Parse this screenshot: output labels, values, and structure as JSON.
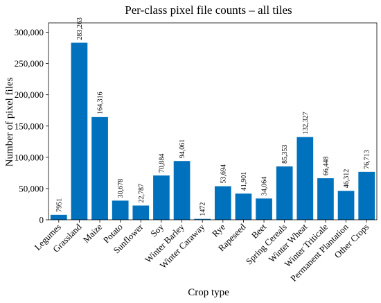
{
  "chart_data": {
    "type": "bar",
    "title": "Per-class pixel file counts – all tiles",
    "xlabel": "Crop type",
    "ylabel": "Number of pixel files",
    "ylim": [
      0,
      315000
    ],
    "yticks": [
      0,
      50000,
      100000,
      150000,
      200000,
      250000,
      300000
    ],
    "ytick_labels": [
      "0",
      "50,000",
      "100,000",
      "150,000",
      "200,000",
      "250,000",
      "300,000"
    ],
    "categories": [
      "Legumes",
      "Grassland",
      "Maize",
      "Potato",
      "Sunflower",
      "Soy",
      "Winter Barley",
      "Winter Caraway",
      "Rye",
      "Rapeseed",
      "Beet",
      "Spring Cereals",
      "Winter Wheat",
      "Winter Triticale",
      "Permanent Plantation",
      "Other Crops"
    ],
    "values": [
      7951,
      283263,
      164316,
      30678,
      22787,
      70884,
      94061,
      1472,
      53694,
      41901,
      34064,
      85353,
      132327,
      66448,
      46312,
      76713
    ],
    "value_labels": [
      "7951",
      "283,263",
      "164,316",
      "30,678",
      "22,787",
      "70,884",
      "94,061",
      "1472",
      "53,694",
      "41,901",
      "34,064",
      "85,353",
      "132,327",
      "66,448",
      "46,312",
      "76,713"
    ],
    "bar_color": "#0072bd",
    "grid": false,
    "legend": "none"
  }
}
